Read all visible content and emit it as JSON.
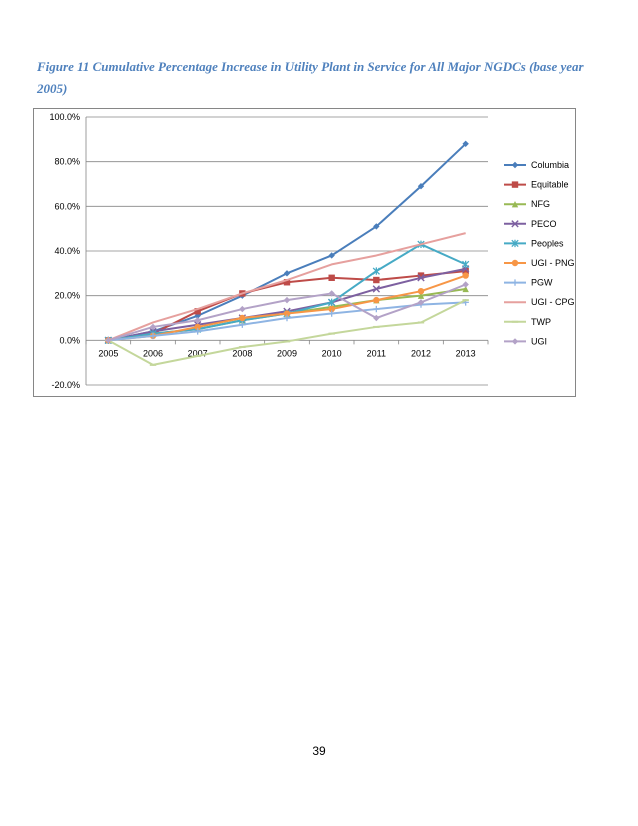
{
  "caption": "Figure 11 Cumulative Percentage Increase in Utility Plant in Service for All Major NGDCs (base year 2005)",
  "page_number": "39",
  "chart_data": {
    "type": "line",
    "title": "",
    "xlabel": "",
    "ylabel": "",
    "categories": [
      "2005",
      "2006",
      "2007",
      "2008",
      "2009",
      "2010",
      "2011",
      "2012",
      "2013"
    ],
    "ylim": [
      -20,
      100
    ],
    "yticks": [
      100,
      80,
      60,
      40,
      20,
      0,
      -20
    ],
    "ytick_labels": [
      "100.0%",
      "80.0%",
      "60.0%",
      "40.0%",
      "20.0%",
      "0.0%",
      "-20.0%"
    ],
    "grid": true,
    "legend_position": "right",
    "series": [
      {
        "name": "Columbia",
        "color": "#4a7ebb",
        "marker": "diamond",
        "values": [
          0,
          4,
          11,
          20,
          30,
          38,
          51,
          69,
          88
        ]
      },
      {
        "name": "Equitable",
        "color": "#be4b48",
        "marker": "square",
        "values": [
          0,
          3,
          13,
          21,
          26,
          28,
          27,
          29,
          31
        ]
      },
      {
        "name": "NFG",
        "color": "#98b954",
        "marker": "triangle",
        "values": [
          0,
          3,
          5,
          9,
          12,
          15,
          18,
          20,
          23
        ]
      },
      {
        "name": "PECO",
        "color": "#7d60a0",
        "marker": "x",
        "values": [
          0,
          4,
          7,
          10,
          13,
          17,
          23,
          28,
          32
        ]
      },
      {
        "name": "Peoples",
        "color": "#46aac5",
        "marker": "star",
        "values": [
          0,
          3,
          5,
          9,
          12,
          17,
          31,
          43,
          34
        ]
      },
      {
        "name": "UGI - PNG",
        "color": "#f79646",
        "marker": "circle",
        "values": [
          0,
          2,
          6,
          10,
          12,
          14,
          18,
          22,
          29
        ]
      },
      {
        "name": "PGW",
        "color": "#8eb4e3",
        "marker": "plus",
        "values": [
          0,
          2,
          4,
          7,
          10,
          12,
          14,
          16,
          17
        ]
      },
      {
        "name": "UGI - CPG",
        "color": "#e6a09e",
        "marker": "none",
        "values": [
          0,
          8,
          14,
          21,
          27,
          34,
          38,
          43,
          48
        ]
      },
      {
        "name": "TWP",
        "color": "#c4d79b",
        "marker": "dash",
        "values": [
          0,
          -11,
          -7,
          -3,
          -0.5,
          3,
          6,
          8,
          18
        ]
      },
      {
        "name": "UGI",
        "color": "#b3a2c7",
        "marker": "diamond",
        "values": [
          0,
          6,
          9,
          14,
          18,
          21,
          10,
          17,
          25
        ]
      }
    ]
  }
}
